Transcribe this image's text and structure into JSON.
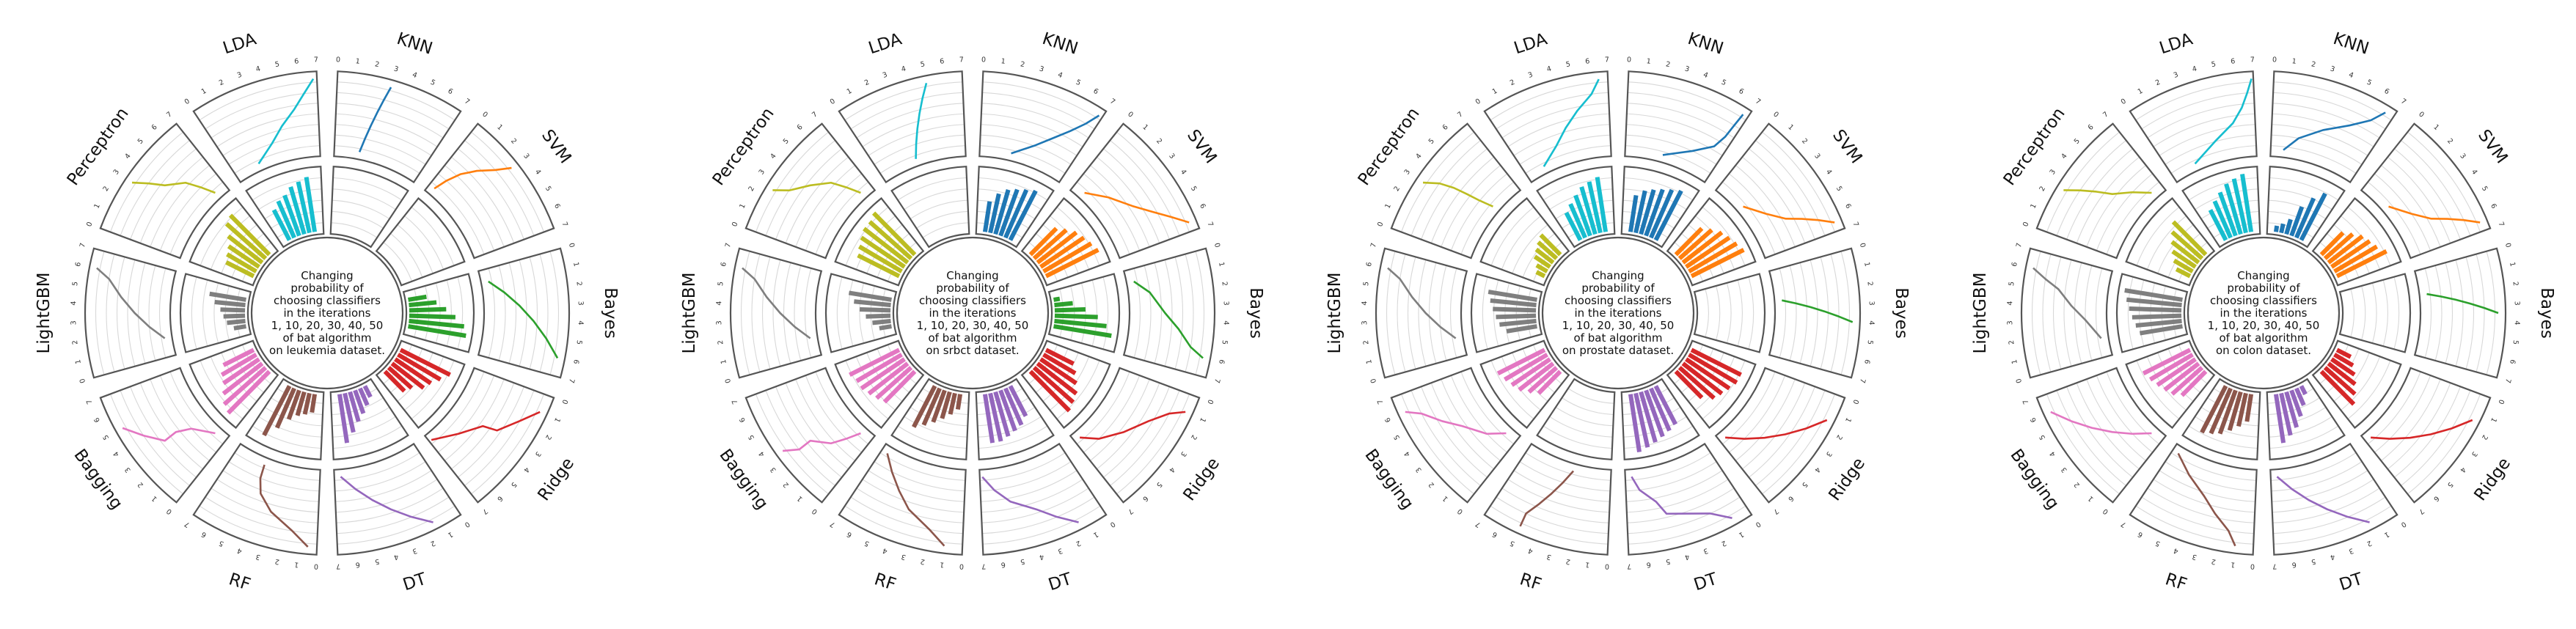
{
  "classifiers": [
    "KNN",
    "SVM",
    "Bayes",
    "Ridge",
    "DT",
    "RF",
    "Bagging",
    "LightGBM",
    "Perceptron",
    "LDA"
  ],
  "colors": {
    "KNN": "#1f77b4",
    "SVM": "#ff7f0e",
    "Bayes": "#2ca02c",
    "Ridge": "#d62728",
    "DT": "#9467bd",
    "RF": "#8c564b",
    "Bagging": "#e377c2",
    "LightGBM": "#7f7f7f",
    "Perceptron": "#bcbd22",
    "LDA": "#17becf"
  },
  "outer_ring_ticks": [
    "0",
    "1",
    "2",
    "3",
    "4",
    "5",
    "6",
    "7"
  ],
  "chart_data": [
    {
      "type": "radial-bar-and-line",
      "dataset": "leukemia",
      "center_label": "Changing\nprobability of\nchoosing classifiers\nin the iterations\n1, 10, 20, 30, 40, 50\nof bat algorithm\non leukemia dataset.",
      "iterations": [
        1,
        10,
        20,
        30,
        40,
        50
      ],
      "ylim": [
        0,
        7
      ],
      "series": [
        {
          "name": "KNN",
          "values": [
            0,
            0,
            0,
            0,
            0,
            0
          ],
          "line": [
            2.0,
            2.2,
            2.4,
            2.6,
            2.8,
            3.0
          ]
        },
        {
          "name": "SVM",
          "values": [
            0,
            0,
            0,
            0,
            0,
            0
          ],
          "line": [
            0.5,
            0.8,
            1.2,
            1.8,
            2.5,
            3.0
          ]
        },
        {
          "name": "Bayes",
          "values": [
            0.3,
            0.45,
            0.6,
            0.75,
            0.9,
            0.95
          ],
          "line": [
            1.0,
            2.0,
            3.0,
            4.0,
            5.0,
            6.0
          ]
        },
        {
          "name": "Ridge",
          "values": [
            0.9,
            0.8,
            0.7,
            0.65,
            0.5,
            0.45
          ],
          "line": [
            6.8,
            5.0,
            3.5,
            3.2,
            2.0,
            1.0
          ]
        },
        {
          "name": "DT",
          "values": [
            0.2,
            0.3,
            0.4,
            0.5,
            0.65,
            0.8
          ],
          "line": [
            6.5,
            5.5,
            4.5,
            3.5,
            2.5,
            1.5
          ]
        },
        {
          "name": "RF",
          "values": [
            0.3,
            0.35,
            0.4,
            0.5,
            0.7,
            0.9
          ],
          "line": [
            4.5,
            4.4,
            4.0,
            3.0,
            1.5,
            0.5
          ]
        },
        {
          "name": "Bagging",
          "values": [
            0.95,
            0.9,
            0.8,
            0.7,
            0.65,
            0.55
          ],
          "line": [
            1.0,
            2.5,
            3.0,
            3.0,
            4.0,
            5.0
          ]
        },
        {
          "name": "LightGBM",
          "values": [
            0.2,
            0.3,
            0.35,
            0.4,
            0.5,
            0.6
          ],
          "line": [
            1.5,
            2.5,
            3.5,
            4.5,
            5.5,
            6.0
          ]
        },
        {
          "name": "Perceptron",
          "values": [
            0.5,
            0.55,
            0.6,
            0.7,
            0.85,
            0.9
          ],
          "line": [
            6.0,
            5.5,
            5.0,
            4.0,
            3.5,
            3.0
          ]
        },
        {
          "name": "LDA",
          "values": [
            0.55,
            0.65,
            0.7,
            0.8,
            0.85,
            0.9
          ],
          "line": [
            2.0,
            3.5,
            4.5,
            5.5,
            6.2,
            6.8
          ]
        }
      ]
    },
    {
      "type": "radial-bar-and-line",
      "dataset": "srbct",
      "center_label": "Changing\nprobability of\nchoosing classifiers\nin the iterations\n1, 10, 20, 30, 40, 50\nof bat algorithm\non srbct dataset.",
      "iterations": [
        1,
        10,
        20,
        30,
        40,
        50
      ],
      "ylim": [
        0,
        7
      ],
      "series": [
        {
          "name": "KNN",
          "values": [
            0.5,
            0.65,
            0.75,
            0.8,
            0.85,
            0.9
          ],
          "line": [
            2.5,
            4.0,
            5.0,
            5.8,
            6.4,
            6.8
          ]
        },
        {
          "name": "SVM",
          "values": [
            0.6,
            0.7,
            0.8,
            0.85,
            0.9,
            0.95
          ],
          "line": [
            1.0,
            2.5,
            4.0,
            5.0,
            5.8,
            6.5
          ]
        },
        {
          "name": "Bayes",
          "values": [
            0.1,
            0.3,
            0.5,
            0.7,
            0.85,
            0.95
          ],
          "line": [
            1.0,
            2.0,
            3.5,
            4.5,
            5.5,
            6.0
          ]
        },
        {
          "name": "Ridge",
          "values": [
            0.5,
            0.6,
            0.7,
            0.8,
            0.85,
            0.9
          ],
          "line": [
            6.5,
            5.5,
            4.0,
            2.5,
            1.5,
            1.0
          ]
        },
        {
          "name": "DT",
          "values": [
            0.55,
            0.65,
            0.7,
            0.75,
            0.8,
            0.8
          ],
          "line": [
            6.8,
            6.0,
            5.0,
            3.5,
            2.5,
            1.5
          ]
        },
        {
          "name": "RF",
          "values": [
            0.25,
            0.35,
            0.45,
            0.55,
            0.65,
            0.75
          ],
          "line": [
            6.5,
            5.5,
            4.5,
            3.5,
            2.0,
            1.0
          ]
        },
        {
          "name": "Bagging",
          "values": [
            0.7,
            0.75,
            0.8,
            0.85,
            0.85,
            0.9
          ],
          "line": [
            1.0,
            1.5,
            2.0,
            3.0,
            3.0,
            3.5
          ]
        },
        {
          "name": "LightGBM",
          "values": [
            0.2,
            0.3,
            0.4,
            0.5,
            0.6,
            0.7
          ],
          "line": [
            1.5,
            2.5,
            3.5,
            4.5,
            5.5,
            6.0
          ]
        },
        {
          "name": "Perceptron",
          "values": [
            0.75,
            0.8,
            0.85,
            0.9,
            0.9,
            0.95
          ],
          "line": [
            6.0,
            5.5,
            5.0,
            4.0,
            3.0,
            2.5
          ]
        },
        {
          "name": "LDA",
          "values": [
            0,
            0,
            0,
            0,
            0,
            0
          ],
          "line": [
            3.0,
            3.4,
            3.8,
            4.2,
            4.6,
            5.0
          ]
        }
      ]
    },
    {
      "type": "radial-bar-and-line",
      "dataset": "prostate",
      "center_label": "Changing\nprobability of\nchoosing classifiers\nin the iterations\n1, 10, 20, 30, 40, 50\nof bat algorithm\non prostate dataset.",
      "iterations": [
        1,
        10,
        20,
        30,
        40,
        50
      ],
      "ylim": [
        0,
        7
      ],
      "series": [
        {
          "name": "KNN",
          "values": [
            0.6,
            0.7,
            0.75,
            0.8,
            0.85,
            0.9
          ],
          "line": [
            3.0,
            5.0,
            6.2,
            6.5,
            6.6,
            6.7
          ]
        },
        {
          "name": "SVM",
          "values": [
            0.6,
            0.7,
            0.8,
            0.85,
            0.9,
            0.95
          ],
          "line": [
            2.5,
            4.0,
            5.0,
            5.5,
            6.0,
            6.5
          ]
        },
        {
          "name": "Bayes",
          "values": [
            0,
            0,
            0,
            0,
            0,
            0
          ],
          "line": [
            2.5,
            2.8,
            3.1,
            3.4,
            3.7,
            4.0
          ]
        },
        {
          "name": "Ridge",
          "values": [
            0.9,
            0.9,
            0.85,
            0.8,
            0.75,
            0.6
          ],
          "line": [
            6.5,
            5.5,
            4.5,
            3.5,
            2.5,
            1.5
          ]
        },
        {
          "name": "DT",
          "values": [
            0.7,
            0.75,
            0.8,
            0.85,
            0.9,
            0.95
          ],
          "line": [
            6.5,
            6.0,
            5.0,
            4.5,
            2.0,
            1.0
          ]
        },
        {
          "name": "RF",
          "values": [
            0,
            0,
            0,
            0,
            0,
            0
          ],
          "line": [
            3.0,
            3.5,
            4.0,
            4.5,
            5.0,
            5.0
          ]
        },
        {
          "name": "Bagging",
          "values": [
            0.5,
            0.6,
            0.7,
            0.75,
            0.8,
            0.85
          ],
          "line": [
            1.0,
            2.0,
            3.5,
            4.5,
            5.5,
            6.0
          ]
        },
        {
          "name": "LightGBM",
          "values": [
            0.5,
            0.6,
            0.65,
            0.7,
            0.75,
            0.8
          ],
          "line": [
            1.5,
            2.5,
            3.5,
            4.5,
            5.5,
            6.0
          ]
        },
        {
          "name": "Perceptron",
          "values": [
            0.15,
            0.2,
            0.3,
            0.35,
            0.4,
            0.45
          ],
          "line": [
            4.5,
            4.2,
            4.0,
            3.8,
            3.5,
            3.0
          ]
        },
        {
          "name": "LDA",
          "values": [
            0.5,
            0.6,
            0.7,
            0.8,
            0.85,
            0.9
          ],
          "line": [
            1.5,
            3.0,
            4.0,
            5.0,
            6.0,
            6.5
          ]
        }
      ]
    },
    {
      "type": "radial-bar-and-line",
      "dataset": "colon",
      "center_label": "Changing\nprobability of\nchoosing classifiers\nin the iterations\n1, 10, 20, 30, 40, 50\nof bat algorithm\non colon dataset.",
      "iterations": [
        1,
        10,
        20,
        30,
        40,
        50
      ],
      "ylim": [
        0,
        7
      ],
      "series": [
        {
          "name": "KNN",
          "values": [
            0.1,
            0.15,
            0.25,
            0.5,
            0.7,
            0.85
          ],
          "line": [
            1.0,
            2.0,
            3.5,
            5.0,
            6.0,
            6.5
          ]
        },
        {
          "name": "SVM",
          "values": [
            0.5,
            0.6,
            0.7,
            0.75,
            0.8,
            0.9
          ],
          "line": [
            2.5,
            4.0,
            5.0,
            5.5,
            6.0,
            6.5
          ]
        },
        {
          "name": "Bayes",
          "values": [
            0,
            0,
            0,
            0,
            0,
            0
          ],
          "line": [
            2.0,
            2.3,
            2.6,
            2.9,
            3.2,
            3.5
          ]
        },
        {
          "name": "Ridge",
          "values": [
            0.25,
            0.35,
            0.45,
            0.55,
            0.65,
            0.75
          ],
          "line": [
            6.5,
            5.5,
            4.5,
            3.5,
            2.5,
            1.5
          ]
        },
        {
          "name": "DT",
          "values": [
            0.15,
            0.3,
            0.45,
            0.6,
            0.7,
            0.8
          ],
          "line": [
            6.5,
            5.5,
            4.5,
            3.5,
            2.5,
            1.5
          ]
        },
        {
          "name": "RF",
          "values": [
            0.45,
            0.55,
            0.65,
            0.75,
            0.8,
            0.85
          ],
          "line": [
            6.5,
            5.0,
            3.5,
            2.5,
            1.5,
            1.0
          ]
        },
        {
          "name": "Bagging",
          "values": [
            0.55,
            0.65,
            0.7,
            0.75,
            0.8,
            0.85
          ],
          "line": [
            1.0,
            2.0,
            3.0,
            4.0,
            5.0,
            6.0
          ]
        },
        {
          "name": "LightGBM",
          "values": [
            0.7,
            0.75,
            0.8,
            0.85,
            0.9,
            0.95
          ],
          "line": [
            1.5,
            3.0,
            4.0,
            5.0,
            5.5,
            6.0
          ]
        },
        {
          "name": "Perceptron",
          "values": [
            0.25,
            0.35,
            0.45,
            0.55,
            0.65,
            0.75
          ],
          "line": [
            6.0,
            5.0,
            4.0,
            3.5,
            3.0,
            2.5
          ]
        },
        {
          "name": "LDA",
          "values": [
            0.55,
            0.65,
            0.75,
            0.85,
            0.9,
            0.95
          ],
          "line": [
            2.0,
            4.0,
            5.5,
            6.2,
            6.6,
            6.9
          ]
        }
      ]
    }
  ]
}
